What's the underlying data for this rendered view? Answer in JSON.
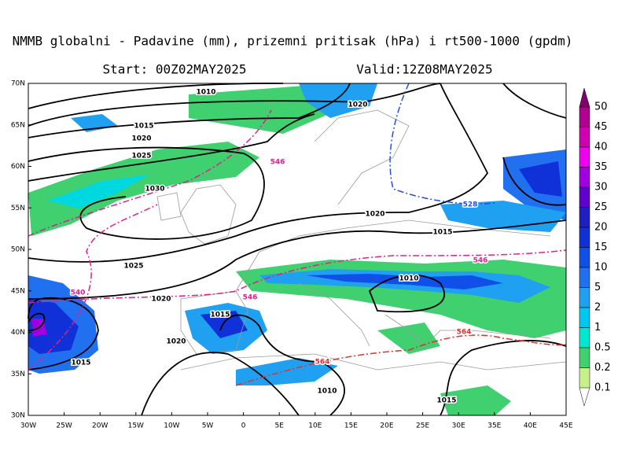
{
  "header": {
    "title": "NMMB globalni - Padavine (mm), prizemni pritisak (hPa) i rt500-1000 (gpdm)",
    "start": "Start: 00Z02MAY2025",
    "valid": "Valid:12Z08MAY2025"
  },
  "map": {
    "lat_labels": [
      "70N",
      "65N",
      "60N",
      "55N",
      "50N",
      "45N",
      "40N",
      "35N",
      "30N"
    ],
    "lon_labels": [
      "30W",
      "25W",
      "20W",
      "15W",
      "10W",
      "5W",
      "0",
      "5E",
      "10E",
      "15E",
      "20E",
      "25E",
      "30E",
      "35E",
      "40E",
      "45E"
    ],
    "isobar_labels": [
      "1010",
      "1020",
      "1015",
      "1020",
      "1025",
      "1030",
      "1020",
      "1015",
      "1025",
      "1020",
      "1015",
      "1020",
      "1015",
      "1010",
      "1010",
      "1015"
    ],
    "thickness_labels": [
      "546",
      "528",
      "546",
      "540",
      "546",
      "564",
      "564"
    ]
  },
  "colorbar": {
    "labels": [
      "50",
      "45",
      "40",
      "35",
      "30",
      "25",
      "20",
      "15",
      "10",
      "5",
      "2",
      "1",
      "0.5",
      "0.2",
      "0.1"
    ]
  }
}
